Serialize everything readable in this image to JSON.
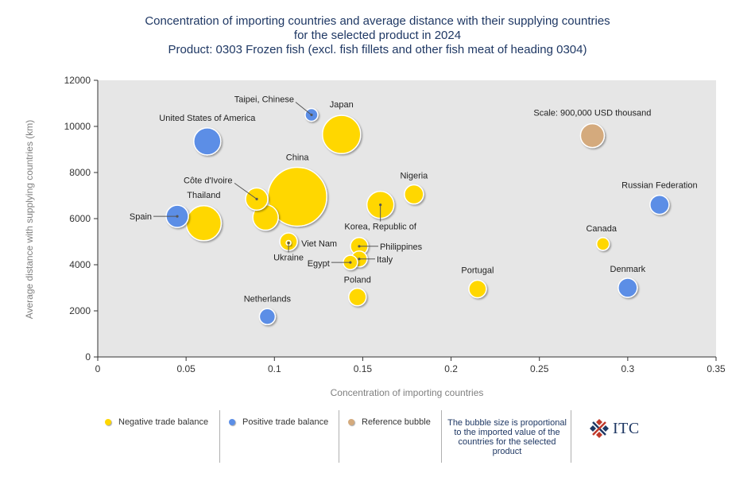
{
  "title": {
    "line1": "Concentration of importing countries and average distance with their supplying countries",
    "line2": "for the selected product in 2024",
    "line3": "Product: 0303 Frozen fish (excl. fish fillets and other fish meat of heading 0304)"
  },
  "chart_data": {
    "type": "scatter",
    "subtype": "bubble",
    "xlabel": "Concentration of importing countries",
    "ylabel": "Average distance with supplying countries (km)",
    "xlim": [
      0,
      0.35
    ],
    "ylim": [
      0,
      12000
    ],
    "x_ticks": [
      0,
      0.05,
      0.1,
      0.15,
      0.2,
      0.25,
      0.3,
      0.35
    ],
    "x_tick_labels": [
      "0",
      "0.05",
      "0.1",
      "0.15",
      "0.2",
      "0.25",
      "0.3",
      "0.35"
    ],
    "y_ticks": [
      0,
      2000,
      4000,
      6000,
      8000,
      10000,
      12000
    ],
    "y_tick_labels": [
      "0",
      "2000",
      "4000",
      "6000",
      "8000",
      "10000",
      "12000"
    ],
    "grid": false,
    "background": "#e6e6e6",
    "colors": {
      "negative": "#ffd700",
      "positive": "#5b8ee6",
      "reference": "#d4aa7d"
    },
    "points": [
      {
        "label": "China",
        "x": 0.113,
        "y": 6950,
        "r": 37,
        "group": "negative"
      },
      {
        "label": "Japan",
        "x": 0.138,
        "y": 9650,
        "r": 24,
        "group": "negative"
      },
      {
        "label": "Thailand",
        "x": 0.06,
        "y": 5800,
        "r": 22,
        "group": "negative"
      },
      {
        "label": "Korea, Republic of",
        "x": 0.16,
        "y": 6600,
        "r": 17,
        "group": "negative"
      },
      {
        "label": "",
        "x": 0.095,
        "y": 6050,
        "r": 16,
        "group": "negative"
      },
      {
        "label": "Côte d'Ivoire",
        "x": 0.09,
        "y": 6850,
        "r": 14,
        "group": "negative"
      },
      {
        "label": "Nigeria",
        "x": 0.179,
        "y": 7050,
        "r": 12,
        "group": "negative"
      },
      {
        "label": "Viet Nam",
        "x": 0.108,
        "y": 5000,
        "r": 11,
        "group": "negative"
      },
      {
        "label": "Philippines",
        "x": 0.148,
        "y": 4800,
        "r": 11,
        "group": "negative"
      },
      {
        "label": "Italy",
        "x": 0.148,
        "y": 4250,
        "r": 10,
        "group": "negative"
      },
      {
        "label": "Egypt",
        "x": 0.143,
        "y": 4100,
        "r": 9,
        "group": "negative"
      },
      {
        "label": "Ukraine",
        "x": 0.108,
        "y": 4950,
        "r": 3,
        "group": "negative"
      },
      {
        "label": "Poland",
        "x": 0.147,
        "y": 2600,
        "r": 11,
        "group": "negative"
      },
      {
        "label": "Portugal",
        "x": 0.215,
        "y": 2950,
        "r": 11,
        "group": "negative"
      },
      {
        "label": "Canada",
        "x": 0.286,
        "y": 4900,
        "r": 8,
        "group": "negative"
      },
      {
        "label": "United States of America",
        "x": 0.062,
        "y": 9350,
        "r": 17,
        "group": "positive"
      },
      {
        "label": "Spain",
        "x": 0.045,
        "y": 6100,
        "r": 14,
        "group": "positive"
      },
      {
        "label": "Taipei, Chinese",
        "x": 0.121,
        "y": 10500,
        "r": 8,
        "group": "positive"
      },
      {
        "label": "Russian Federation",
        "x": 0.318,
        "y": 6600,
        "r": 12,
        "group": "positive"
      },
      {
        "label": "Denmark",
        "x": 0.3,
        "y": 3000,
        "r": 12,
        "group": "positive"
      },
      {
        "label": "Netherlands",
        "x": 0.096,
        "y": 1750,
        "r": 10,
        "group": "positive"
      },
      {
        "label": "Scale: 900,000 USD thousand",
        "x": 0.28,
        "y": 9600,
        "r": 15,
        "group": "reference"
      }
    ]
  },
  "legend": {
    "negative": "Negative trade balance",
    "positive": "Positive trade balance",
    "reference": "Reference bubble",
    "note": "The bubble size is proportional to the imported value of the countries for the selected product",
    "logo_text": "ITC"
  }
}
